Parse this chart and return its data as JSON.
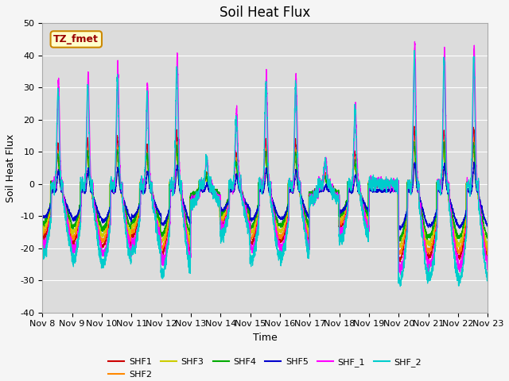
{
  "title": "Soil Heat Flux",
  "xlabel": "Time",
  "ylabel": "Soil Heat Flux",
  "xlim": [
    0,
    15
  ],
  "ylim": [
    -40,
    50
  ],
  "yticks": [
    -40,
    -30,
    -20,
    -10,
    0,
    10,
    20,
    30,
    40,
    50
  ],
  "xtick_labels": [
    "Nov 8",
    "Nov 9",
    "Nov 10",
    "Nov 11",
    "Nov 12",
    "Nov 13",
    "Nov 14",
    "Nov 15",
    "Nov 16",
    "Nov 17",
    "Nov 18",
    "Nov 19",
    "Nov 20",
    "Nov 21",
    "Nov 22",
    "Nov 23"
  ],
  "background_color": "#dcdcdc",
  "plot_bg_color": "#dcdcdc",
  "fig_bg_color": "#f5f5f5",
  "annotation_text": "TZ_fmet",
  "annotation_bg": "#ffffcc",
  "annotation_border": "#cc8800",
  "annotation_text_color": "#990000",
  "series": [
    {
      "name": "SHF1",
      "color": "#cc0000"
    },
    {
      "name": "SHF2",
      "color": "#ff8800"
    },
    {
      "name": "SHF3",
      "color": "#cccc00"
    },
    {
      "name": "SHF4",
      "color": "#00aa00"
    },
    {
      "name": "SHF5",
      "color": "#0000cc"
    },
    {
      "name": "SHF_1",
      "color": "#ff00ff"
    },
    {
      "name": "SHF_2",
      "color": "#00cccc"
    }
  ],
  "grid_color": "#ffffff",
  "title_fontsize": 12,
  "axis_label_fontsize": 9,
  "tick_fontsize": 8,
  "day_peak_amps": [
    33,
    36,
    38,
    32,
    42,
    18,
    24,
    36,
    35,
    16,
    26,
    0,
    46,
    44,
    45
  ],
  "day_cloud": [
    0,
    0,
    0,
    0,
    0,
    1,
    0,
    0,
    0,
    1,
    0,
    1,
    0,
    0,
    0
  ]
}
